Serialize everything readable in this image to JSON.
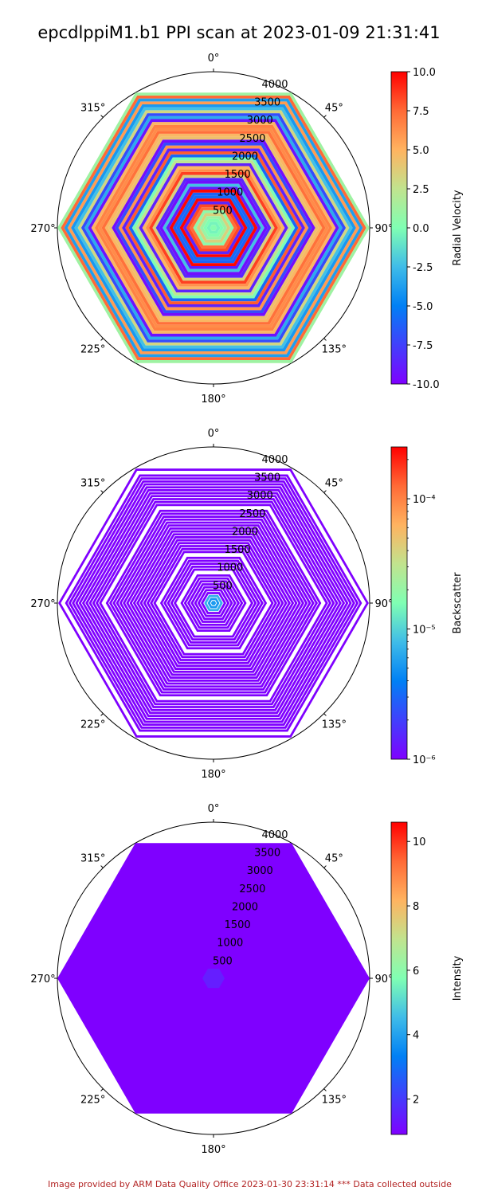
{
  "title": "epcdlppiM1.b1 PPI scan at 2023-01-09 21:31:41",
  "footer": "Image provided by ARM Data Quality Office 2023-01-30 23:31:14    *** Data collected outside",
  "chart_data": [
    {
      "type": "heatmap",
      "projection": "polar",
      "variable": "Radial Velocity",
      "angle_ticks": [
        "0°",
        "45°",
        "90°",
        "135°",
        "180°",
        "225°",
        "270°",
        "315°"
      ],
      "radial_ticks": [
        "500",
        "1000",
        "1500",
        "2000",
        "2500",
        "3000",
        "3500",
        "4000"
      ],
      "rmax": 4000,
      "colorbar": {
        "label": "Radial Velocity",
        "scale": "linear",
        "range": [
          -10.0,
          10.0
        ],
        "ticks": [
          "-10.0",
          "-7.5",
          "-5.0",
          "-2.5",
          "0.0",
          "2.5",
          "5.0",
          "7.5",
          "10.0"
        ]
      },
      "pattern": "striped"
    },
    {
      "type": "heatmap",
      "projection": "polar",
      "variable": "Backscatter",
      "angle_ticks": [
        "0°",
        "45°",
        "90°",
        "135°",
        "180°",
        "225°",
        "270°",
        "315°"
      ],
      "radial_ticks": [
        "500",
        "1000",
        "1500",
        "2000",
        "2500",
        "3000",
        "3500",
        "4000"
      ],
      "rmax": 4000,
      "colorbar": {
        "label": "Backscatter",
        "scale": "log",
        "range": [
          1e-06,
          0.00025
        ],
        "ticks": [
          "10⁻⁶",
          "10⁻⁵",
          "10⁻⁴"
        ]
      },
      "pattern": "gapped"
    },
    {
      "type": "heatmap",
      "projection": "polar",
      "variable": "Intensity",
      "angle_ticks": [
        "0°",
        "45°",
        "90°",
        "135°",
        "180°",
        "225°",
        "270°",
        "315°"
      ],
      "radial_ticks": [
        "500",
        "1000",
        "1500",
        "2000",
        "2500",
        "3000",
        "3500",
        "4000"
      ],
      "rmax": 4000,
      "colorbar": {
        "label": "Intensity",
        "scale": "linear",
        "range": [
          0.9,
          10.6
        ],
        "ticks": [
          "2",
          "4",
          "6",
          "8",
          "10"
        ]
      },
      "pattern": "solid"
    }
  ]
}
